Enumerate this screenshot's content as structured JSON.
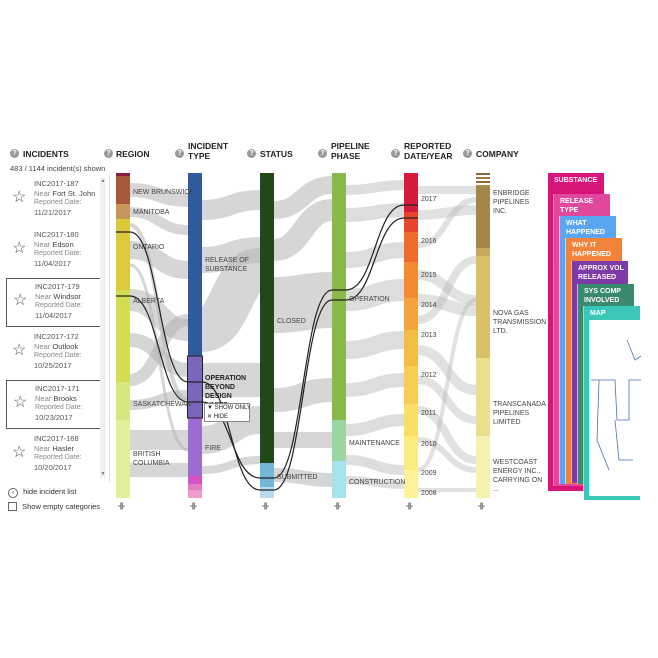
{
  "headers": {
    "incidents": "INCIDENTS",
    "region": "REGION",
    "incident_type": "INCIDENT TYPE",
    "status": "STATUS",
    "pipeline_phase": "PIPELINE PHASE",
    "reported": "REPORTED DATE/YEAR",
    "company": "COMPANY",
    "help_symbol": "?"
  },
  "shown_count": "483 / 1144 incident(s) shown",
  "incidents": [
    {
      "id": "INC2017-187",
      "near_label": "Near",
      "place": "Fort St. John",
      "reported_label": "Reported Date:",
      "date": "11/21/2017",
      "selected": false
    },
    {
      "id": "INC2017-180",
      "near_label": "Near",
      "place": "Edson",
      "reported_label": "Reported Date:",
      "date": "11/04/2017",
      "selected": false
    },
    {
      "id": "INC2017-179",
      "near_label": "Near",
      "place": "Windsor",
      "reported_label": "Reported Date:",
      "date": "11/04/2017",
      "selected": true
    },
    {
      "id": "INC2017-172",
      "near_label": "Near",
      "place": "Outlook",
      "reported_label": "Reported Date:",
      "date": "10/25/2017",
      "selected": false
    },
    {
      "id": "INC2017-171",
      "near_label": "Near",
      "place": "Brooks",
      "reported_label": "Reported Date:",
      "date": "10/23/2017",
      "selected": true
    },
    {
      "id": "INC2017-168",
      "near_label": "Near",
      "place": "Hasler",
      "reported_label": "Reported Date:",
      "date": "10/20/2017",
      "selected": false
    }
  ],
  "hide_list": "hide incident list",
  "show_empty": "Show empty categories",
  "star_icon": "star-icon",
  "region_labels": [
    "NEW BRUNSWICK",
    "MANITOBA",
    "ONTARIO",
    "ALBERTA",
    "SASKATCHEWAN",
    "BRITISH COLUMBIA"
  ],
  "type_labels": [
    "RELEASE OF SUBSTANCE",
    "OPERATION BEYOND DESIGN LIMITS",
    "FIRE"
  ],
  "status_labels": [
    "CLOSED",
    "SUBMITTED"
  ],
  "phase_labels": [
    "OPERATION",
    "MAINTENANCE",
    "CONSTRUCTION"
  ],
  "years": [
    "2017",
    "2016",
    "2015",
    "2014",
    "2013",
    "2012",
    "2011",
    "2010",
    "2009",
    "2008"
  ],
  "company_labels": [
    "ENBRIDGE PIPELINES INC.",
    "NOVA GAS TRANSMISSION LTD.",
    "TRANSCANADA PIPELINES LIMITED",
    "WESTCOAST ENERGY INC., CARRYING ON ..."
  ],
  "popup": {
    "show_only": "▼ SHOW ONLY",
    "hide": "✕ HIDE"
  },
  "column_control": "-||-",
  "tabs": [
    "SUBSTANCE",
    "RELEASE TYPE",
    "WHAT HAPPENED",
    "WHY IT HAPPENED",
    "APPROX VOL RELEASED",
    "SYS COMP INVOLVED",
    "MAP"
  ],
  "colors": {
    "incident_type_blue": "#2f5a9c",
    "status_green": "#1f4a18",
    "phase_green": "#8ab84a",
    "selection_purple": "#8a72c4",
    "tab_magenta": "#d6147a",
    "tab_teal": "#3ac7b8"
  }
}
